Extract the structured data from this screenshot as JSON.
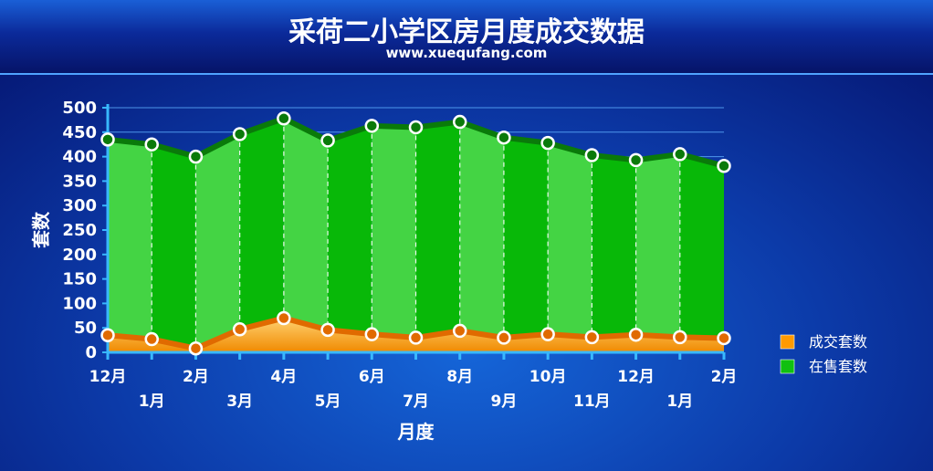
{
  "header": {
    "title": "采荷二小学区房月度成交数据",
    "subtitle": "www.xuequfang.com"
  },
  "chart_data": {
    "type": "area",
    "categories": [
      "12月",
      "1月",
      "2月",
      "3月",
      "4月",
      "5月",
      "6月",
      "7月",
      "8月",
      "9月",
      "10月",
      "11月",
      "12月",
      "1月",
      "2月"
    ],
    "series": [
      {
        "name": "成交套数",
        "values": [
          35,
          27,
          8,
          47,
          70,
          46,
          37,
          30,
          44,
          30,
          37,
          31,
          36,
          31,
          29
        ],
        "color": "#ff9a00"
      },
      {
        "name": "在售套数",
        "values": [
          435,
          425,
          400,
          446,
          478,
          433,
          463,
          460,
          471,
          439,
          428,
          403,
          393,
          405,
          381
        ],
        "color": "#10c010"
      }
    ],
    "title": "采荷二小学区房月度成交数据",
    "xlabel": "月度",
    "ylabel": "套数",
    "ylim": [
      0,
      500
    ],
    "yticks": [
      0,
      50,
      100,
      150,
      200,
      250,
      300,
      350,
      400,
      450,
      500
    ],
    "grid": true,
    "legend_position": "right"
  }
}
